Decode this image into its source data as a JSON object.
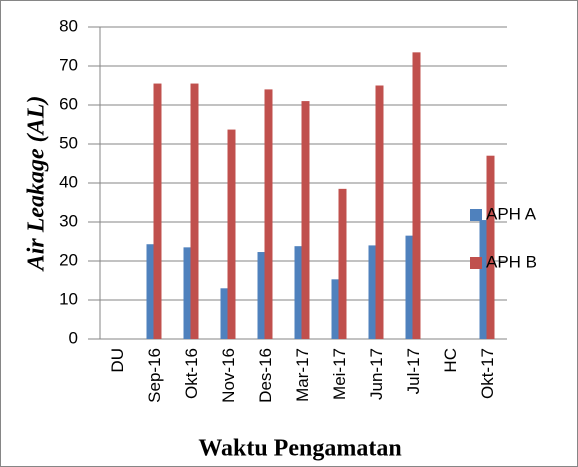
{
  "chart_data": {
    "type": "bar",
    "categories": [
      "DU",
      "Sep-16",
      "Okt-16",
      "Nov-16",
      "Des-16",
      "Mar-17",
      "Mei-17",
      "Jun-17",
      "Jul-17",
      "HC",
      "Okt-17"
    ],
    "series": [
      {
        "name": "APH A",
        "color": "#4f81bd",
        "values": [
          null,
          24.3,
          23.5,
          13,
          22.3,
          23.8,
          15.3,
          24,
          26.5,
          null,
          30.5
        ]
      },
      {
        "name": "APH B",
        "color": "#c0504d",
        "values": [
          null,
          65.5,
          65.5,
          53.7,
          64,
          61,
          38.5,
          65,
          73.5,
          null,
          47
        ]
      }
    ],
    "ylim": [
      0,
      80
    ],
    "yticks": [
      0,
      10,
      20,
      30,
      40,
      50,
      60,
      70,
      80
    ],
    "grid": true,
    "ylabel": "Air Leakage (AL)",
    "xlabel": "Waktu Pengamatan",
    "legend": "right"
  }
}
